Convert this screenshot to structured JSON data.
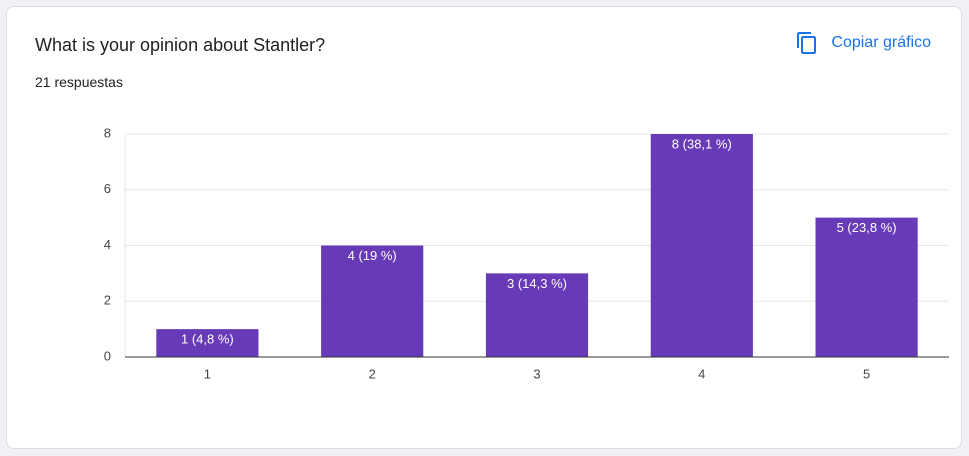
{
  "header": {
    "title": "What is your opinion about Stantler?",
    "subtitle": "21 respuestas",
    "button": "Copiar gráfico"
  },
  "chart_data": {
    "type": "bar",
    "categories": [
      "1",
      "2",
      "3",
      "4",
      "5"
    ],
    "values": [
      1,
      4,
      3,
      8,
      5
    ],
    "value_labels": [
      "1 (4,8 %)",
      "4 (19 %)",
      "3 (14,3 %)",
      "8 (38,1 %)",
      "5 (23,8 %)"
    ],
    "color": "#673ab7",
    "ylim": [
      0,
      8
    ],
    "yticks": [
      0,
      2,
      4,
      6,
      8
    ],
    "grid": true
  }
}
